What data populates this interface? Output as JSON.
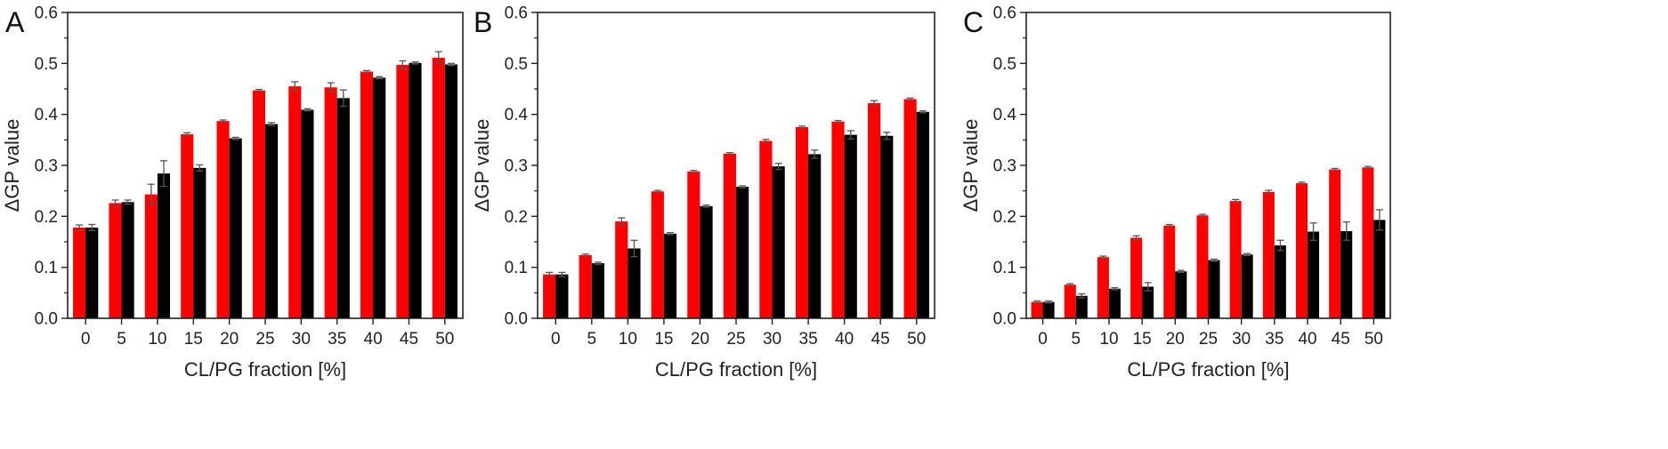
{
  "chart_data": [
    {
      "type": "bar",
      "panel_label": "A",
      "xlabel": "CL/PG fraction [%]",
      "ylabel": "ΔGP value",
      "ylim": [
        0,
        0.6
      ],
      "yticks": [
        "0.0",
        "0.1",
        "0.2",
        "0.3",
        "0.4",
        "0.5",
        "0.6"
      ],
      "categories": [
        "0",
        "5",
        "10",
        "15",
        "20",
        "25",
        "30",
        "35",
        "40",
        "45",
        "50"
      ],
      "colors": [
        "#ff0000",
        "#000000"
      ],
      "grid": false,
      "series": [
        {
          "values": [
            0.178,
            0.226,
            0.243,
            0.361,
            0.387,
            0.447,
            0.455,
            0.453,
            0.484,
            0.497,
            0.511
          ],
          "errors": [
            0.005,
            0.006,
            0.02,
            0.003,
            0.002,
            0.002,
            0.009,
            0.009,
            0.002,
            0.008,
            0.012
          ]
        },
        {
          "values": [
            0.178,
            0.228,
            0.284,
            0.295,
            0.353,
            0.381,
            0.409,
            0.432,
            0.472,
            0.501,
            0.498
          ],
          "errors": [
            0.006,
            0.004,
            0.025,
            0.006,
            0.002,
            0.003,
            0.002,
            0.016,
            0.002,
            0.002,
            0.002
          ]
        }
      ]
    },
    {
      "type": "bar",
      "panel_label": "B",
      "xlabel": "CL/PG fraction [%]",
      "ylabel": "ΔGP value",
      "ylim": [
        0,
        0.6
      ],
      "yticks": [
        "0.0",
        "0.1",
        "0.2",
        "0.3",
        "0.4",
        "0.5",
        "0.6"
      ],
      "categories": [
        "0",
        "5",
        "10",
        "15",
        "20",
        "25",
        "30",
        "35",
        "40",
        "45",
        "50"
      ],
      "colors": [
        "#ff0000",
        "#000000"
      ],
      "grid": false,
      "series": [
        {
          "values": [
            0.086,
            0.124,
            0.19,
            0.249,
            0.288,
            0.323,
            0.348,
            0.375,
            0.386,
            0.422,
            0.43
          ],
          "errors": [
            0.004,
            0.002,
            0.007,
            0.002,
            0.002,
            0.002,
            0.003,
            0.002,
            0.002,
            0.005,
            0.002
          ]
        },
        {
          "values": [
            0.086,
            0.108,
            0.137,
            0.166,
            0.22,
            0.258,
            0.298,
            0.322,
            0.36,
            0.358,
            0.405
          ],
          "errors": [
            0.004,
            0.002,
            0.016,
            0.002,
            0.002,
            0.002,
            0.006,
            0.008,
            0.008,
            0.007,
            0.002
          ]
        }
      ]
    },
    {
      "type": "bar",
      "panel_label": "C",
      "xlabel": "CL/PG fraction [%]",
      "ylabel": "ΔGP value",
      "ylim": [
        0,
        0.6
      ],
      "yticks": [
        "0.0",
        "0.1",
        "0.2",
        "0.3",
        "0.4",
        "0.5",
        "0.6"
      ],
      "categories": [
        "0",
        "5",
        "10",
        "15",
        "20",
        "25",
        "30",
        "35",
        "40",
        "45",
        "50"
      ],
      "colors": [
        "#ff0000",
        "#000000"
      ],
      "grid": false,
      "series": [
        {
          "values": [
            0.032,
            0.066,
            0.12,
            0.158,
            0.182,
            0.202,
            0.23,
            0.248,
            0.265,
            0.292,
            0.296
          ],
          "errors": [
            0.002,
            0.002,
            0.002,
            0.004,
            0.002,
            0.002,
            0.003,
            0.003,
            0.002,
            0.002,
            0.002
          ]
        },
        {
          "values": [
            0.032,
            0.044,
            0.058,
            0.062,
            0.092,
            0.114,
            0.125,
            0.143,
            0.17,
            0.171,
            0.193
          ],
          "errors": [
            0.002,
            0.004,
            0.002,
            0.008,
            0.002,
            0.002,
            0.002,
            0.01,
            0.017,
            0.018,
            0.02
          ]
        }
      ]
    }
  ]
}
